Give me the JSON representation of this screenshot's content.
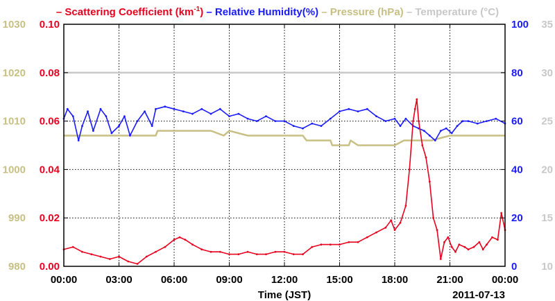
{
  "chart_data": {
    "type": "line",
    "title": "",
    "legend": {
      "placement": "top",
      "entries": [
        {
          "pre": "– ",
          "text": "Scattering Coefficient (km",
          "sup": "-1",
          "post": ")",
          "color": "#e8001e"
        },
        {
          "pre": " – ",
          "text": "Relative Humidity(%)",
          "color": "#1a1aff"
        },
        {
          "pre": " – ",
          "text": "Pressure (hPa)",
          "color": "#c8bf84"
        },
        {
          "pre": " – ",
          "text": "Temperature (°C)",
          "color": "#c8c8c8"
        }
      ]
    },
    "xlabel": "Time (JST)",
    "date_label": "2011-07-13",
    "x_ticks": [
      "00:00",
      "03:00",
      "06:00",
      "09:00",
      "12:00",
      "15:00",
      "18:00",
      "21:00",
      "00:00"
    ],
    "xlim_hours": [
      0,
      24
    ],
    "grid": true,
    "axes": {
      "scattering": {
        "ylim": [
          0,
          0.1
        ],
        "ticks": [
          "0.00",
          "0.02",
          "0.04",
          "0.06",
          "0.08",
          "0.10"
        ],
        "color": "#e8001e"
      },
      "pressure": {
        "ylim": [
          980,
          1030
        ],
        "ticks": [
          "980",
          "990",
          "1000",
          "1010",
          "1020",
          "1030"
        ],
        "color": "#c8bf84"
      },
      "humidity": {
        "ylim": [
          0,
          100
        ],
        "ticks": [
          "0",
          "20",
          "40",
          "60",
          "80",
          "100"
        ],
        "color": "#1a1aff"
      },
      "temperature": {
        "ylim": [
          10,
          35
        ],
        "ticks": [
          "10",
          "15",
          "20",
          "25",
          "30",
          "35"
        ],
        "color": "#c8c8c8"
      }
    },
    "series": [
      {
        "name": "Scattering Coefficient",
        "axis": "scattering",
        "color": "#e8001e",
        "points": [
          [
            0,
            0.007
          ],
          [
            0.5,
            0.008
          ],
          [
            1,
            0.006
          ],
          [
            1.5,
            0.005
          ],
          [
            2,
            0.004
          ],
          [
            2.5,
            0.003
          ],
          [
            3,
            0.004
          ],
          [
            3.5,
            0.002
          ],
          [
            4,
            0.001
          ],
          [
            4.5,
            0.004
          ],
          [
            5,
            0.006
          ],
          [
            5.5,
            0.008
          ],
          [
            6,
            0.011
          ],
          [
            6.3,
            0.012
          ],
          [
            6.6,
            0.011
          ],
          [
            7,
            0.009
          ],
          [
            7.5,
            0.007
          ],
          [
            8,
            0.006
          ],
          [
            8.5,
            0.006
          ],
          [
            9,
            0.005
          ],
          [
            9.5,
            0.005
          ],
          [
            10,
            0.006
          ],
          [
            10.5,
            0.005
          ],
          [
            11,
            0.005
          ],
          [
            11.5,
            0.006
          ],
          [
            12,
            0.006
          ],
          [
            12.5,
            0.005
          ],
          [
            13,
            0.005
          ],
          [
            13.5,
            0.008
          ],
          [
            14,
            0.009
          ],
          [
            14.5,
            0.009
          ],
          [
            15,
            0.009
          ],
          [
            15.5,
            0.01
          ],
          [
            16,
            0.01
          ],
          [
            16.5,
            0.012
          ],
          [
            17,
            0.014
          ],
          [
            17.5,
            0.016
          ],
          [
            17.8,
            0.019
          ],
          [
            18,
            0.015
          ],
          [
            18.3,
            0.018
          ],
          [
            18.6,
            0.025
          ],
          [
            18.8,
            0.04
          ],
          [
            19,
            0.06
          ],
          [
            19.1,
            0.065
          ],
          [
            19.2,
            0.069
          ],
          [
            19.3,
            0.06
          ],
          [
            19.5,
            0.05
          ],
          [
            19.7,
            0.045
          ],
          [
            19.9,
            0.035
          ],
          [
            20.1,
            0.02
          ],
          [
            20.3,
            0.015
          ],
          [
            20.5,
            0.003
          ],
          [
            20.7,
            0.01
          ],
          [
            20.9,
            0.012
          ],
          [
            21.1,
            0.008
          ],
          [
            21.3,
            0.006
          ],
          [
            21.5,
            0.009
          ],
          [
            21.8,
            0.008
          ],
          [
            22,
            0.007
          ],
          [
            22.3,
            0.008
          ],
          [
            22.6,
            0.01
          ],
          [
            22.8,
            0.007
          ],
          [
            23,
            0.009
          ],
          [
            23.3,
            0.012
          ],
          [
            23.6,
            0.011
          ],
          [
            23.8,
            0.022
          ],
          [
            24,
            0.015
          ]
        ]
      },
      {
        "name": "Relative Humidity(%)",
        "axis": "humidity",
        "color": "#1a1aff",
        "points": [
          [
            0,
            61
          ],
          [
            0.2,
            65
          ],
          [
            0.5,
            62
          ],
          [
            0.8,
            52
          ],
          [
            1,
            58
          ],
          [
            1.3,
            64
          ],
          [
            1.6,
            56
          ],
          [
            2,
            65
          ],
          [
            2.3,
            62
          ],
          [
            2.6,
            55
          ],
          [
            3,
            58
          ],
          [
            3.3,
            62
          ],
          [
            3.6,
            54
          ],
          [
            4,
            60
          ],
          [
            4.4,
            64
          ],
          [
            4.8,
            58
          ],
          [
            5,
            65
          ],
          [
            5.5,
            66
          ],
          [
            6,
            65
          ],
          [
            6.5,
            64
          ],
          [
            7,
            63
          ],
          [
            7.5,
            65
          ],
          [
            8,
            63
          ],
          [
            8.5,
            65
          ],
          [
            9,
            62
          ],
          [
            9.5,
            63
          ],
          [
            10,
            61
          ],
          [
            10.5,
            60
          ],
          [
            11,
            62
          ],
          [
            11.5,
            60
          ],
          [
            12,
            60
          ],
          [
            12.5,
            58
          ],
          [
            13,
            57
          ],
          [
            13.5,
            59
          ],
          [
            14,
            58
          ],
          [
            14.5,
            61
          ],
          [
            15,
            64
          ],
          [
            15.5,
            65
          ],
          [
            16,
            64
          ],
          [
            16.5,
            65
          ],
          [
            17,
            62
          ],
          [
            17.5,
            60
          ],
          [
            18,
            61
          ],
          [
            18.3,
            58
          ],
          [
            18.6,
            61
          ],
          [
            19,
            58
          ],
          [
            19.3,
            57
          ],
          [
            19.6,
            56
          ],
          [
            19.9,
            54
          ],
          [
            20.2,
            52
          ],
          [
            20.5,
            56
          ],
          [
            20.8,
            57
          ],
          [
            21.1,
            55
          ],
          [
            21.4,
            58
          ],
          [
            21.7,
            60
          ],
          [
            22,
            60
          ],
          [
            22.5,
            59
          ],
          [
            23,
            60
          ],
          [
            23.5,
            61
          ],
          [
            24,
            59
          ]
        ]
      },
      {
        "name": "Pressure (hPa)",
        "axis": "pressure",
        "color": "#c8bf84",
        "points": [
          [
            0,
            1007
          ],
          [
            1,
            1007
          ],
          [
            2,
            1007
          ],
          [
            3,
            1007
          ],
          [
            4,
            1007
          ],
          [
            5,
            1007
          ],
          [
            5.1,
            1008
          ],
          [
            6,
            1008
          ],
          [
            7,
            1008
          ],
          [
            8,
            1008
          ],
          [
            8.7,
            1007
          ],
          [
            9,
            1008
          ],
          [
            10,
            1007
          ],
          [
            11,
            1007
          ],
          [
            12,
            1007
          ],
          [
            13,
            1007
          ],
          [
            13.2,
            1006
          ],
          [
            14,
            1006
          ],
          [
            14.5,
            1006
          ],
          [
            14.6,
            1005
          ],
          [
            15,
            1005
          ],
          [
            15.5,
            1005
          ],
          [
            15.6,
            1006
          ],
          [
            16,
            1005
          ],
          [
            17,
            1005
          ],
          [
            18,
            1005
          ],
          [
            18.5,
            1006
          ],
          [
            19,
            1006
          ],
          [
            20,
            1006
          ],
          [
            21,
            1007
          ],
          [
            22,
            1007
          ],
          [
            23,
            1007
          ],
          [
            24,
            1007
          ]
        ]
      },
      {
        "name": "Temperature (°C)",
        "axis": "temperature",
        "color": "#c8c8c8",
        "points": [
          [
            0,
            30
          ],
          [
            24,
            30
          ]
        ]
      }
    ]
  }
}
